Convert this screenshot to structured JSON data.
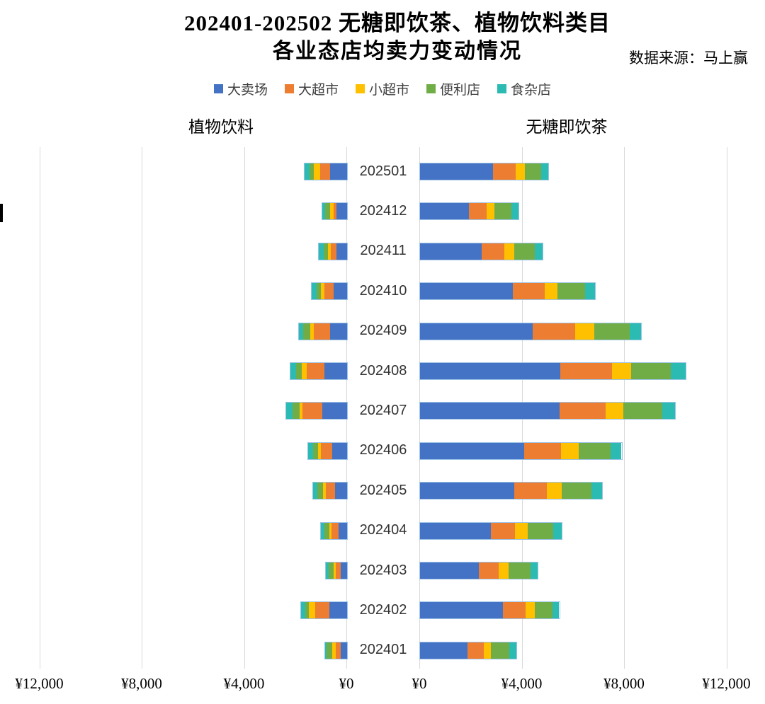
{
  "title": {
    "line1": "202401-202502 无糖即饮茶、植物饮料类目",
    "line2": "各业态店均卖力变动情况"
  },
  "source": "数据来源：马上赢",
  "legend": {
    "items": [
      {
        "label": "大卖场",
        "color": "#4472C4"
      },
      {
        "label": "大超市",
        "color": "#ED7D31"
      },
      {
        "label": "小超市",
        "color": "#FFC000"
      },
      {
        "label": "便利店",
        "color": "#70AD47"
      },
      {
        "label": "食杂店",
        "color": "#2BBBB3"
      }
    ]
  },
  "sections": {
    "left": "植物饮料",
    "right": "无糖即饮茶"
  },
  "chart_data": [
    {
      "type": "bar",
      "subtype": "horizontal-stacked",
      "title": "植物饮料",
      "side": "left",
      "direction": "right-to-left",
      "unit": "¥ (店均卖力)",
      "categories": [
        "202501",
        "202412",
        "202411",
        "202410",
        "202409",
        "202408",
        "202407",
        "202406",
        "202405",
        "202404",
        "202403",
        "202402",
        "202401"
      ],
      "series": [
        {
          "name": "大卖场",
          "color": "#4472C4",
          "values": [
            665,
            405,
            425,
            515,
            665,
            885,
            980,
            570,
            470,
            325,
            250,
            695,
            240
          ]
        },
        {
          "name": "大超市",
          "color": "#ED7D31",
          "values": [
            395,
            130,
            220,
            370,
            630,
            700,
            775,
            460,
            370,
            275,
            205,
            555,
            205
          ]
        },
        {
          "name": "小超市",
          "color": "#FFC000",
          "values": [
            230,
            120,
            110,
            130,
            150,
            185,
            110,
            90,
            90,
            90,
            75,
            240,
            145
          ]
        },
        {
          "name": "便利店",
          "color": "#70AD47",
          "values": [
            165,
            200,
            165,
            165,
            275,
            220,
            275,
            210,
            220,
            205,
            185,
            150,
            205
          ]
        },
        {
          "name": "食杂店",
          "color": "#2BBBB3",
          "values": [
            220,
            120,
            185,
            195,
            165,
            220,
            230,
            195,
            185,
            130,
            110,
            150,
            65
          ]
        }
      ],
      "value_axis": {
        "ticks": [
          "¥12,000",
          "¥8,000",
          "¥4,000",
          "¥0"
        ],
        "tick_values": [
          12000,
          8000,
          4000,
          0
        ],
        "min": 0,
        "max": 12000,
        "grid": true
      }
    },
    {
      "type": "bar",
      "subtype": "horizontal-stacked",
      "title": "无糖即饮茶",
      "side": "right",
      "direction": "left-to-right",
      "unit": "¥ (店均卖力)",
      "categories": [
        "202501",
        "202412",
        "202411",
        "202410",
        "202409",
        "202408",
        "202407",
        "202406",
        "202405",
        "202404",
        "202403",
        "202402",
        "202401"
      ],
      "series": [
        {
          "name": "大卖场",
          "color": "#4472C4",
          "values": [
            2860,
            1920,
            2410,
            3620,
            4390,
            5470,
            5450,
            4080,
            3675,
            2770,
            2295,
            3250,
            1860
          ]
        },
        {
          "name": "大超市",
          "color": "#ED7D31",
          "values": [
            880,
            670,
            890,
            1240,
            1660,
            2020,
            1800,
            1440,
            1270,
            950,
            775,
            875,
            645
          ]
        },
        {
          "name": "小超市",
          "color": "#FFC000",
          "values": [
            370,
            310,
            390,
            520,
            755,
            765,
            710,
            680,
            600,
            480,
            385,
            360,
            265
          ]
        },
        {
          "name": "便利店",
          "color": "#70AD47",
          "values": [
            630,
            660,
            790,
            1080,
            1380,
            1550,
            1500,
            1260,
            1160,
            1005,
            855,
            680,
            720
          ]
        },
        {
          "name": "食杂店",
          "color": "#2BBBB3",
          "values": [
            270,
            285,
            310,
            380,
            460,
            580,
            500,
            415,
            395,
            330,
            295,
            275,
            265
          ]
        }
      ],
      "value_axis": {
        "ticks": [
          "¥0",
          "¥4,000",
          "¥8,000",
          "¥12,000"
        ],
        "tick_values": [
          0,
          4000,
          8000,
          12000
        ],
        "min": 0,
        "max": 12000,
        "grid": true
      }
    }
  ]
}
